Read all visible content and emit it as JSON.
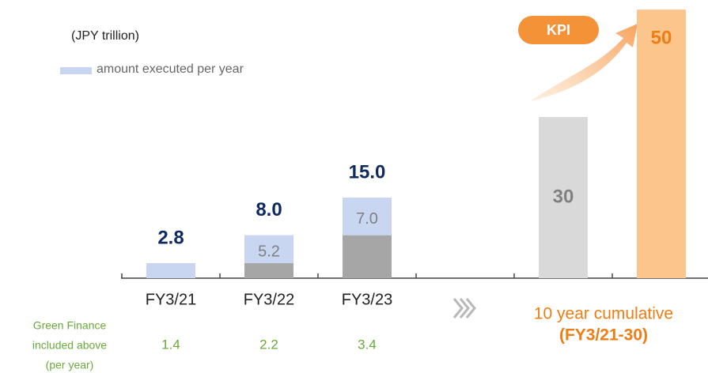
{
  "chart_data": {
    "type": "stacked_bar",
    "subtitle": "(JPY trillion)",
    "categories": [
      "FY3/21",
      "FY3/22",
      "FY3/23"
    ],
    "series": [
      {
        "color": "#a6a6a6",
        "values": [
          null,
          2.8,
          8.0
        ]
      },
      {
        "name": "amount executed per year",
        "color": "#c9d6f2",
        "values": [
          2.8,
          5.2,
          7.0
        ],
        "value_labels": [
          null,
          "5.2",
          "7.0"
        ]
      }
    ],
    "totals": [
      2.8,
      8.0,
      15.0
    ],
    "total_labels": [
      "2.8",
      "8.0",
      "15.0"
    ],
    "cumulative": {
      "values": [
        30,
        50
      ],
      "colors": [
        "#d9d9d9",
        "#fcc58c"
      ],
      "label_colors": [
        "#808080",
        "#ee7d14"
      ],
      "label": [
        "10 year cumulative",
        "(FY3/21-30)"
      ]
    },
    "annotation": "KPI",
    "green_finance": {
      "label": [
        "Green Finance",
        "included above",
        "(per year)"
      ],
      "values": [
        1.4,
        2.2,
        3.4
      ]
    },
    "ylim": [
      0,
      51.5
    ]
  }
}
